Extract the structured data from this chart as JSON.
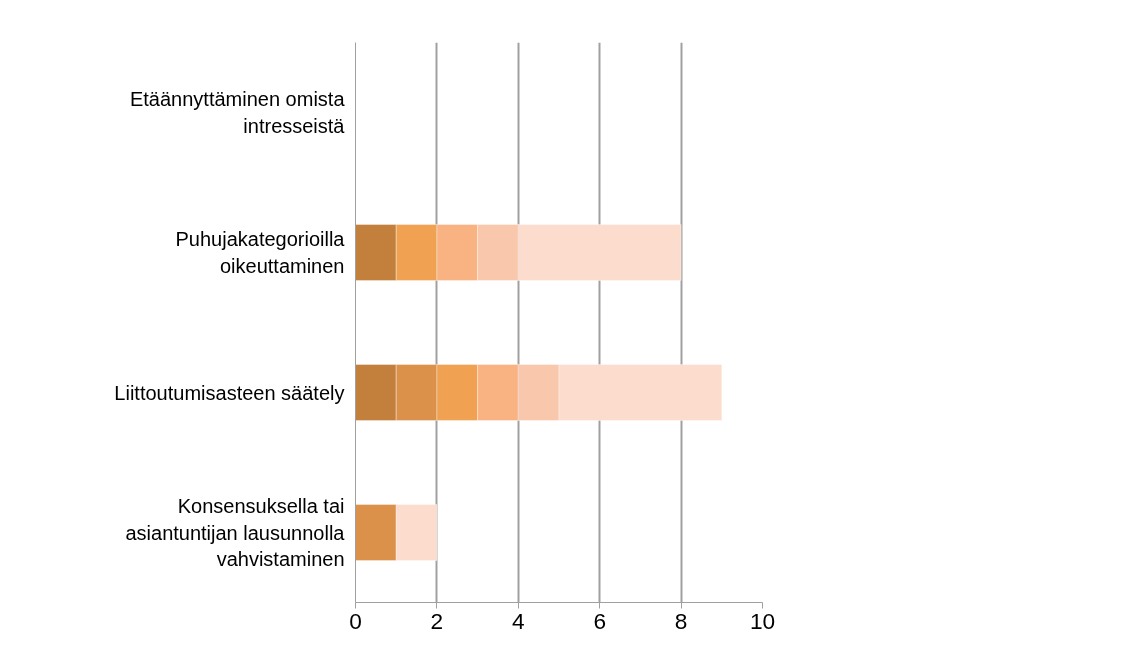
{
  "chart_data": {
    "type": "bar",
    "orientation": "horizontal",
    "stacked": true,
    "categories": [
      "Etäännyttäminen omista intresseistä",
      "Puhujakategorioilla oikeuttaminen",
      "Liittoutumisasteen säätely",
      "Konsensuksella tai asiantuntijan lausunnolla vahvistaminen"
    ],
    "series": [
      {
        "color": "#c3803d",
        "values": [
          0,
          1,
          1,
          0
        ]
      },
      {
        "color": "#dc914b",
        "values": [
          0,
          0,
          1,
          1
        ]
      },
      {
        "color": "#f0a252",
        "values": [
          0,
          1,
          1,
          0
        ]
      },
      {
        "color": "#f9b382",
        "values": [
          0,
          1,
          1,
          0
        ]
      },
      {
        "color": "#f9c8ac",
        "values": [
          0,
          1,
          1,
          0
        ]
      },
      {
        "color": "#fcdccd",
        "values": [
          0,
          4,
          4,
          1
        ]
      }
    ],
    "xlim": [
      0,
      10
    ],
    "xticks": [
      0,
      2,
      4,
      6,
      8,
      10
    ],
    "grid": "x"
  }
}
